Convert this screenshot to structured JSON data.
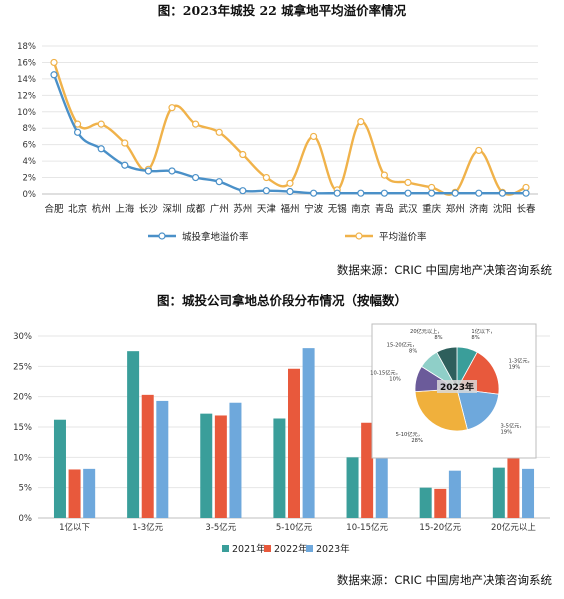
{
  "chart_data": [
    {
      "type": "line",
      "title": "图：2023年城投 22 城拿地平均溢价率情况",
      "categories": [
        "合肥",
        "北京",
        "杭州",
        "上海",
        "长沙",
        "深圳",
        "成都",
        "广州",
        "苏州",
        "天津",
        "福州",
        "宁波",
        "无锡",
        "南京",
        "青岛",
        "武汉",
        "重庆",
        "郑州",
        "济南",
        "沈阳",
        "长春"
      ],
      "yticks": [
        "0%",
        "2%",
        "4%",
        "6%",
        "8%",
        "10%",
        "12%",
        "14%",
        "16%",
        "18%"
      ],
      "ylim": [
        0,
        18
      ],
      "series": [
        {
          "name": "城投拿地溢价率",
          "color": "#4a90c8",
          "values": [
            14.5,
            7.5,
            5.5,
            3.5,
            2.8,
            2.8,
            2.0,
            1.5,
            0.4,
            0.4,
            0.3,
            0.1,
            0.1,
            0.1,
            0.1,
            0.1,
            0.1,
            0.1,
            0.1,
            0.1,
            0.1
          ]
        },
        {
          "name": "平均溢价率",
          "color": "#f0b24a",
          "values": [
            16.0,
            8.5,
            8.5,
            6.2,
            3.0,
            10.5,
            8.5,
            7.5,
            4.8,
            2.0,
            1.3,
            7.0,
            0.5,
            8.8,
            2.3,
            1.4,
            0.8,
            0.2,
            5.3,
            0.2,
            0.8
          ]
        }
      ],
      "source": "数据来源：CRIC 中国房地产决策咨询系统"
    },
    {
      "type": "bar",
      "title": "图：城投公司拿地总价段分布情况（按幅数）",
      "categories": [
        "1亿以下",
        "1-3亿元",
        "3-5亿元",
        "5-10亿元",
        "10-15亿元",
        "15-20亿元",
        "20亿元以上"
      ],
      "yticks": [
        "0%",
        "5%",
        "10%",
        "15%",
        "20%",
        "25%",
        "30%"
      ],
      "ylim": [
        0,
        30
      ],
      "series": [
        {
          "name": "2021年",
          "color": "#3a9e9a",
          "values": [
            16.2,
            27.5,
            17.2,
            16.4,
            10.0,
            5.0,
            8.3
          ]
        },
        {
          "name": "2022年",
          "color": "#e8593c",
          "values": [
            8.0,
            20.3,
            16.9,
            24.6,
            15.7,
            4.8,
            10.5
          ]
        },
        {
          "name": "2023年",
          "color": "#6ea8dc",
          "values": [
            8.1,
            19.3,
            19.0,
            28.0,
            10.2,
            7.8,
            8.1
          ]
        }
      ],
      "source": "数据来源：CRIC 中国房地产决策咨询系统"
    },
    {
      "type": "pie",
      "title": "2023年",
      "slices": [
        {
          "label": "1亿以下，8%",
          "value": 8,
          "color": "#3a9e9a"
        },
        {
          "label": "1-3亿元，19%",
          "value": 19,
          "color": "#e8593c"
        },
        {
          "label": "3-5亿元，19%",
          "value": 19,
          "color": "#6ea8dc"
        },
        {
          "label": "5-10亿元，28%",
          "value": 28,
          "color": "#f0b03c"
        },
        {
          "label": "10-15亿元，10%",
          "value": 10,
          "color": "#6b5b9a"
        },
        {
          "label": "15-20亿元，8%",
          "value": 8,
          "color": "#8fcfc8"
        },
        {
          "label": "20亿元以上，8%",
          "value": 8,
          "color": "#2e5f5c"
        }
      ]
    }
  ]
}
